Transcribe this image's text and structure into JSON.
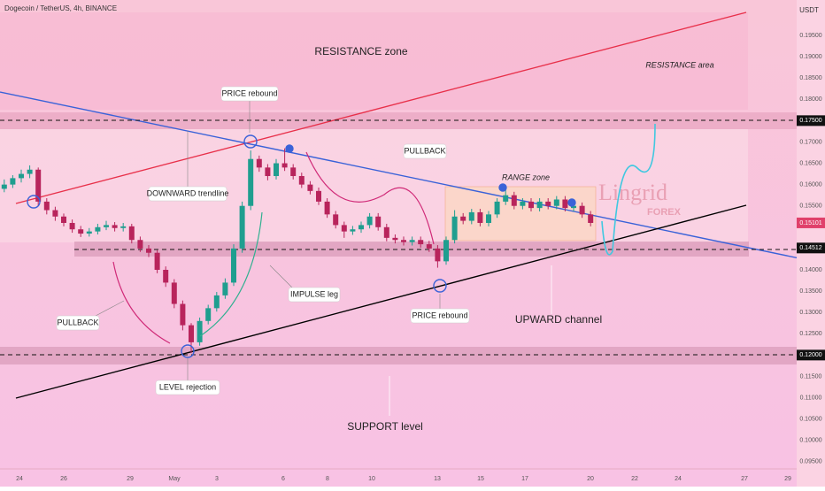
{
  "header": {
    "symbol": "Dogecoin / TetherUS, 4h, BINANCE",
    "currency": "USDT"
  },
  "chart_data": {
    "type": "candlestick",
    "ylim": [
      0.0933,
      0.2033
    ],
    "yticks": [
      {
        "value": 0.095,
        "label": "0.09500"
      },
      {
        "value": 0.1,
        "label": "0.10000"
      },
      {
        "value": 0.105,
        "label": "0.10500"
      },
      {
        "value": 0.11,
        "label": "0.11000"
      },
      {
        "value": 0.115,
        "label": "0.11500"
      },
      {
        "value": 0.125,
        "label": "0.12500"
      },
      {
        "value": 0.13,
        "label": "0.13000"
      },
      {
        "value": 0.135,
        "label": "0.13500"
      },
      {
        "value": 0.14,
        "label": "0.14000"
      },
      {
        "value": 0.155,
        "label": "0.15500"
      },
      {
        "value": 0.16,
        "label": "0.16000"
      },
      {
        "value": 0.165,
        "label": "0.16500"
      },
      {
        "value": 0.17,
        "label": "0.17000"
      },
      {
        "value": 0.18,
        "label": "0.18000"
      },
      {
        "value": 0.185,
        "label": "0.18500"
      },
      {
        "value": 0.19,
        "label": "0.19000"
      },
      {
        "value": 0.195,
        "label": "0.19500"
      }
    ],
    "price_labels": [
      {
        "value": 0.175,
        "label": "0.17500"
      },
      {
        "value": 0.15101,
        "label": "0.15101"
      },
      {
        "value": 0.14512,
        "label": "0.14512"
      },
      {
        "value": 0.12,
        "label": "0.12000"
      }
    ],
    "x_labels": [
      "24",
      "26",
      "29",
      "May",
      "3",
      "6",
      "8",
      "10",
      "13",
      "15",
      "17",
      "20",
      "22",
      "24",
      "27",
      "29"
    ],
    "up_color": "#1f9e8f",
    "down_color": "#b8245c",
    "open": [
      0.159,
      0.16,
      0.1615,
      0.1625,
      0.1635,
      0.156,
      0.154,
      0.1525,
      0.151,
      0.1495,
      0.1485,
      0.149,
      0.15,
      0.1505,
      0.1498,
      0.1502,
      0.147,
      0.145,
      0.144,
      0.14,
      0.137,
      0.132,
      0.127,
      0.123,
      0.128,
      0.131,
      0.134,
      0.137,
      0.145,
      0.155,
      0.166,
      0.164,
      0.162,
      0.165,
      0.164,
      0.162,
      0.16,
      0.1585,
      0.156,
      0.153,
      0.1505,
      0.149,
      0.1495,
      0.1505,
      0.1525,
      0.15,
      0.1475,
      0.147,
      0.1465,
      0.147,
      0.146,
      0.145,
      0.142,
      0.147,
      0.1525,
      0.1515,
      0.1535,
      0.151,
      0.153,
      0.156,
      0.1575,
      0.155,
      0.156,
      0.1545,
      0.156,
      0.155,
      0.1565,
      0.1545,
      0.155,
      0.153
    ],
    "high": [
      0.1612,
      0.1622,
      0.1635,
      0.1645,
      0.164,
      0.1568,
      0.1548,
      0.1532,
      0.1518,
      0.1503,
      0.1498,
      0.1508,
      0.1515,
      0.1512,
      0.151,
      0.1508,
      0.1478,
      0.1458,
      0.1446,
      0.1408,
      0.1378,
      0.1328,
      0.1275,
      0.1288,
      0.1318,
      0.1348,
      0.138,
      0.146,
      0.156,
      0.168,
      0.1668,
      0.1648,
      0.166,
      0.1685,
      0.1648,
      0.1628,
      0.1608,
      0.1593,
      0.1568,
      0.1538,
      0.1513,
      0.1503,
      0.1513,
      0.1533,
      0.1533,
      0.1508,
      0.1483,
      0.1478,
      0.1478,
      0.1478,
      0.1468,
      0.1458,
      0.1478,
      0.154,
      0.1533,
      0.1543,
      0.1543,
      0.1538,
      0.1568,
      0.1595,
      0.1583,
      0.1568,
      0.1568,
      0.1568,
      0.1568,
      0.1573,
      0.1573,
      0.1558,
      0.1558,
      0.1538
    ],
    "low": [
      0.1582,
      0.1592,
      0.1605,
      0.1615,
      0.155,
      0.153,
      0.1515,
      0.1502,
      0.1487,
      0.1477,
      0.1478,
      0.1483,
      0.1493,
      0.149,
      0.149,
      0.1462,
      0.1442,
      0.143,
      0.1392,
      0.136,
      0.131,
      0.1258,
      0.1205,
      0.1222,
      0.1272,
      0.1302,
      0.1332,
      0.1362,
      0.144,
      0.154,
      0.163,
      0.161,
      0.1612,
      0.1632,
      0.1612,
      0.1592,
      0.1577,
      0.1552,
      0.1522,
      0.1497,
      0.1475,
      0.1482,
      0.1487,
      0.1497,
      0.1492,
      0.1467,
      0.1462,
      0.1457,
      0.1457,
      0.1452,
      0.1442,
      0.1405,
      0.1412,
      0.1462,
      0.1507,
      0.1507,
      0.1502,
      0.1502,
      0.1522,
      0.1552,
      0.1542,
      0.1542,
      0.1537,
      0.1537,
      0.1542,
      0.1542,
      0.1537,
      0.1537,
      0.1522,
      0.1502
    ],
    "close": [
      0.16,
      0.1615,
      0.1625,
      0.1635,
      0.156,
      0.154,
      0.1525,
      0.151,
      0.1495,
      0.1485,
      0.149,
      0.15,
      0.1505,
      0.1498,
      0.1502,
      0.147,
      0.145,
      0.144,
      0.14,
      0.137,
      0.132,
      0.127,
      0.123,
      0.128,
      0.131,
      0.134,
      0.137,
      0.145,
      0.155,
      0.166,
      0.164,
      0.162,
      0.165,
      0.164,
      0.162,
      0.16,
      0.1585,
      0.156,
      0.153,
      0.1505,
      0.149,
      0.1495,
      0.1505,
      0.1525,
      0.15,
      0.1475,
      0.147,
      0.1465,
      0.147,
      0.146,
      0.145,
      0.142,
      0.147,
      0.1525,
      0.1515,
      0.1535,
      0.151,
      0.153,
      0.156,
      0.1575,
      0.155,
      0.156,
      0.1545,
      0.156,
      0.155,
      0.1565,
      0.1545,
      0.155,
      0.153,
      0.151
    ]
  },
  "annotations": {
    "resistance_zone": "RESISTANCE zone",
    "resistance_area": "RESISTANCE area",
    "price_rebound_top": "PRICE rebound",
    "downward_trendline": "DOWNWARD trendline",
    "pullback_top": "PULLBACK",
    "range_zone": "RANGE zone",
    "impulse_leg": "IMPULSE leg",
    "pullback_left": "PULLBACK",
    "price_rebound_bottom": "PRICE rebound",
    "upward_channel": "UPWARD channel",
    "level_rejection": "LEVEL rejection",
    "support_level": "SUPPORT level",
    "watermark": "Lingrid",
    "watermark_sub": "FOREX"
  }
}
